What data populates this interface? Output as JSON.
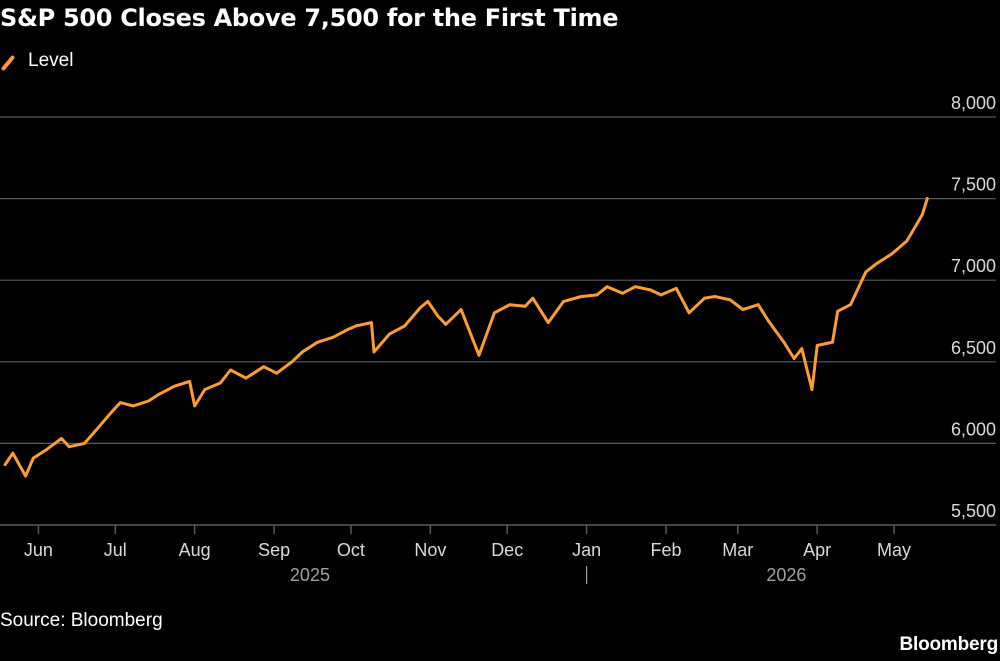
{
  "title": "S&P 500 Closes Above 7,500 for the First Time",
  "source": "Source: Bloomberg",
  "brand": "Bloomberg",
  "colors": {
    "background": "#000000",
    "series": "#fb9d32",
    "grid": "#5a5a5a",
    "text": "#ffffff"
  },
  "chart_data": {
    "type": "line",
    "title": "S&P 500 Closes Above 7,500 for the First Time",
    "xlabel": "",
    "ylabel": "",
    "ylim": [
      5500,
      8000
    ],
    "yticks": [
      5500,
      6000,
      6500,
      7000,
      7500,
      8000
    ],
    "ytick_labels": [
      "5,500",
      "6,000",
      "6,500",
      "7,000",
      "7,500",
      "8,000"
    ],
    "x_axis": {
      "months": [
        "Jun",
        "Jul",
        "Aug",
        "Sep",
        "Oct",
        "Nov",
        "Dec",
        "Jan",
        "Feb",
        "Mar",
        "Apr",
        "May"
      ],
      "years": [
        "2025",
        "2026"
      ]
    },
    "grid": true,
    "legend_position": "top-left",
    "series": [
      {
        "name": "Level",
        "color": "#fb9d32",
        "x": [
          "2025-05-19",
          "2025-05-22",
          "2025-05-27",
          "2025-05-30",
          "2025-06-04",
          "2025-06-10",
          "2025-06-13",
          "2025-06-19",
          "2025-06-24",
          "2025-06-30",
          "2025-07-03",
          "2025-07-08",
          "2025-07-14",
          "2025-07-18",
          "2025-07-24",
          "2025-07-30",
          "2025-08-01",
          "2025-08-05",
          "2025-08-11",
          "2025-08-15",
          "2025-08-21",
          "2025-08-28",
          "2025-09-02",
          "2025-09-08",
          "2025-09-12",
          "2025-09-18",
          "2025-09-24",
          "2025-09-30",
          "2025-10-03",
          "2025-10-09",
          "2025-10-10",
          "2025-10-16",
          "2025-10-22",
          "2025-10-28",
          "2025-10-31",
          "2025-11-04",
          "2025-11-07",
          "2025-11-13",
          "2025-11-20",
          "2025-11-26",
          "2025-12-02",
          "2025-12-08",
          "2025-12-11",
          "2025-12-17",
          "2025-12-23",
          "2025-12-30",
          "2026-01-05",
          "2026-01-09",
          "2026-01-15",
          "2026-01-20",
          "2026-01-26",
          "2026-01-30",
          "2026-02-05",
          "2026-02-10",
          "2026-02-16",
          "2026-02-20",
          "2026-02-26",
          "2026-03-03",
          "2026-03-09",
          "2026-03-13",
          "2026-03-19",
          "2026-03-23",
          "2026-03-26",
          "2026-03-30",
          "2026-04-01",
          "2026-04-07",
          "2026-04-09",
          "2026-04-14",
          "2026-04-20",
          "2026-04-24",
          "2026-04-30",
          "2026-05-06",
          "2026-05-12",
          "2026-05-14"
        ],
        "values": [
          5870,
          5940,
          5800,
          5910,
          5960,
          6030,
          5980,
          6000,
          6090,
          6200,
          6250,
          6230,
          6260,
          6300,
          6350,
          6380,
          6230,
          6330,
          6370,
          6450,
          6400,
          6470,
          6430,
          6500,
          6560,
          6620,
          6650,
          6700,
          6720,
          6740,
          6560,
          6670,
          6720,
          6830,
          6870,
          6780,
          6730,
          6820,
          6540,
          6800,
          6850,
          6840,
          6890,
          6740,
          6870,
          6900,
          6910,
          6960,
          6920,
          6960,
          6940,
          6910,
          6950,
          6800,
          6890,
          6900,
          6880,
          6820,
          6850,
          6750,
          6620,
          6520,
          6580,
          6330,
          6600,
          6620,
          6810,
          6850,
          7050,
          7100,
          7160,
          7240,
          7400,
          7500
        ]
      }
    ]
  }
}
